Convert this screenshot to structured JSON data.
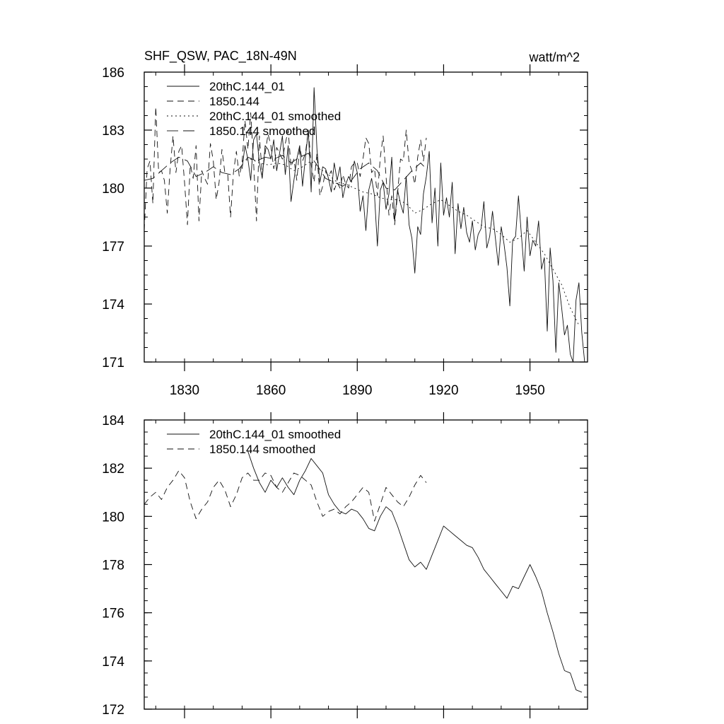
{
  "chart_data": [
    {
      "type": "line",
      "title": "SHF_QSW, PAC_18N-49N",
      "units": "watt/m^2",
      "xlabel": "",
      "ylabel": "",
      "xlim": [
        1816,
        1970
      ],
      "ylim": [
        171,
        186
      ],
      "x_ticks": [
        1830,
        1860,
        1890,
        1920,
        1950
      ],
      "y_ticks": [
        171,
        174,
        177,
        180,
        183,
        186
      ],
      "grid": false,
      "legend": "top-left",
      "series": [
        {
          "name": "20thC.144_01",
          "dash": "solid",
          "x": [
            1850,
            1851,
            1852,
            1853,
            1854,
            1855,
            1856,
            1857,
            1858,
            1859,
            1860,
            1861,
            1862,
            1863,
            1864,
            1865,
            1866,
            1867,
            1868,
            1869,
            1870,
            1871,
            1872,
            1873,
            1874,
            1875,
            1876,
            1877,
            1878,
            1879,
            1880,
            1881,
            1882,
            1883,
            1884,
            1885,
            1886,
            1887,
            1888,
            1889,
            1890,
            1891,
            1892,
            1893,
            1894,
            1895,
            1896,
            1897,
            1898,
            1899,
            1900,
            1901,
            1902,
            1903,
            1904,
            1905,
            1906,
            1907,
            1908,
            1909,
            1910,
            1911,
            1912,
            1913,
            1914,
            1915,
            1916,
            1917,
            1918,
            1919,
            1920,
            1921,
            1922,
            1923,
            1924,
            1925,
            1926,
            1927,
            1928,
            1929,
            1930,
            1931,
            1932,
            1933,
            1934,
            1935,
            1936,
            1937,
            1938,
            1939,
            1940,
            1941,
            1942,
            1943,
            1944,
            1945,
            1946,
            1947,
            1948,
            1949,
            1950,
            1951,
            1952,
            1953,
            1954,
            1955,
            1956,
            1957,
            1958,
            1959,
            1960,
            1961,
            1962,
            1963,
            1964,
            1965,
            1966,
            1967,
            1968,
            1969
          ],
          "y": [
            181.0,
            182.2,
            181.5,
            180.4,
            182.5,
            182.8,
            181.3,
            180.5,
            182.2,
            182.0,
            181.5,
            182.5,
            180.9,
            181.8,
            182.7,
            180.7,
            182.2,
            179.3,
            180.4,
            181.5,
            182.2,
            180.1,
            181.6,
            183.0,
            179.8,
            185.2,
            182.0,
            180.3,
            181.1,
            181.0,
            180.5,
            179.8,
            181.3,
            180.4,
            181.1,
            179.5,
            180.2,
            180.6,
            180.3,
            181.4,
            180.8,
            178.8,
            179.6,
            177.8,
            179.9,
            180.5,
            179.6,
            177.0,
            179.9,
            180.3,
            178.9,
            179.7,
            181.6,
            178.3,
            179.9,
            179.2,
            178.7,
            180.6,
            178.1,
            177.4,
            175.6,
            178.0,
            177.6,
            179.7,
            180.6,
            181.9,
            178.2,
            180.0,
            177.0,
            181.3,
            178.6,
            179.5,
            178.5,
            180.3,
            176.6,
            179.2,
            177.9,
            179.0,
            177.7,
            177.2,
            178.3,
            176.8,
            177.6,
            177.9,
            179.3,
            176.9,
            177.5,
            178.8,
            177.4,
            176.0,
            178.0,
            177.1,
            175.9,
            173.9,
            177.3,
            177.5,
            179.6,
            177.6,
            175.7,
            178.5,
            176.5,
            177.3,
            177.0,
            178.3,
            175.8,
            176.4,
            172.6,
            176.9,
            175.2,
            171.5,
            175.1,
            173.8,
            172.4,
            172.9,
            171.4,
            171.0,
            174.2,
            175.1,
            172.5,
            171.0
          ]
        },
        {
          "name": "1850.144",
          "dash": "dash",
          "x": [
            1816,
            1817,
            1818,
            1819,
            1820,
            1821,
            1822,
            1823,
            1824,
            1825,
            1826,
            1827,
            1828,
            1829,
            1830,
            1831,
            1832,
            1833,
            1834,
            1835,
            1836,
            1837,
            1838,
            1839,
            1840,
            1841,
            1842,
            1843,
            1844,
            1845,
            1846,
            1847,
            1848,
            1849,
            1850,
            1851,
            1852,
            1853,
            1854,
            1855,
            1856,
            1857,
            1858,
            1859,
            1860,
            1861,
            1862,
            1863,
            1864,
            1865,
            1866,
            1867,
            1868,
            1869,
            1870,
            1871,
            1872,
            1873,
            1874,
            1875,
            1876,
            1877,
            1878,
            1879,
            1880,
            1881,
            1882,
            1883,
            1884,
            1885,
            1886,
            1887,
            1888,
            1889,
            1890,
            1891,
            1892,
            1893,
            1894,
            1895,
            1896,
            1897,
            1898,
            1899,
            1900,
            1901,
            1902,
            1903,
            1904,
            1905,
            1906,
            1907,
            1908,
            1909,
            1910,
            1911,
            1912,
            1913,
            1914
          ],
          "y": [
            177.8,
            181.0,
            181.4,
            179.2,
            184.2,
            180.8,
            180.9,
            180.4,
            178.7,
            181.0,
            182.7,
            180.8,
            181.9,
            182.2,
            180.3,
            178.1,
            181.2,
            180.5,
            182.2,
            178.3,
            180.9,
            180.5,
            180.2,
            182.3,
            181.4,
            179.4,
            180.3,
            182.0,
            180.8,
            180.7,
            178.5,
            180.8,
            181.9,
            180.6,
            181.3,
            183.5,
            182.0,
            183.9,
            181.3,
            178.3,
            182.7,
            180.7,
            181.8,
            182.8,
            182.2,
            181.0,
            182.1,
            181.8,
            181.5,
            182.3,
            183.0,
            181.1,
            181.5,
            180.4,
            182.1,
            181.4,
            181.8,
            183.0,
            181.2,
            180.3,
            181.8,
            179.6,
            180.1,
            180.9,
            180.6,
            180.9,
            179.9,
            180.3,
            180.0,
            180.7,
            180.2,
            180.0,
            181.1,
            181.3,
            181.3,
            180.6,
            181.5,
            182.6,
            182.3,
            180.8,
            181.0,
            179.6,
            181.6,
            182.7,
            180.6,
            178.6,
            179.6,
            178.1,
            179.7,
            181.5,
            181.4,
            183.0,
            181.3,
            180.9,
            180.2,
            181.6,
            182.5,
            181.4,
            182.6
          ]
        },
        {
          "name": "20thC.144_01 smoothed",
          "dash": "dot",
          "x": [
            1850,
            1853,
            1856,
            1859,
            1862,
            1865,
            1868,
            1871,
            1874,
            1877,
            1880,
            1883,
            1886,
            1889,
            1892,
            1895,
            1898,
            1901,
            1904,
            1907,
            1910,
            1913,
            1916,
            1919,
            1922,
            1925,
            1928,
            1931,
            1934,
            1937,
            1940,
            1943,
            1946,
            1949,
            1952,
            1955,
            1958,
            1961,
            1964,
            1967
          ],
          "y": [
            181.4,
            181.5,
            181.3,
            181.2,
            181.3,
            181.2,
            180.9,
            181.1,
            181.4,
            181.0,
            180.7,
            180.3,
            180.2,
            180.0,
            179.8,
            179.7,
            179.5,
            179.4,
            179.4,
            179.2,
            178.7,
            178.9,
            179.2,
            179.4,
            179.1,
            178.8,
            178.6,
            178.3,
            178.0,
            177.9,
            177.6,
            177.2,
            177.4,
            177.8,
            177.2,
            176.6,
            175.8,
            175.0,
            173.8,
            172.9
          ]
        },
        {
          "name": "1850.144 smoothed",
          "dash": "longdash",
          "x": [
            1816,
            1819,
            1822,
            1825,
            1828,
            1831,
            1834,
            1837,
            1840,
            1843,
            1846,
            1849,
            1852,
            1855,
            1858,
            1861,
            1864,
            1867,
            1870,
            1873,
            1876,
            1879,
            1882,
            1885,
            1888,
            1891,
            1894,
            1897,
            1900,
            1903,
            1906,
            1909,
            1912,
            1914
          ],
          "y": [
            180.4,
            180.5,
            180.9,
            181.3,
            181.6,
            181.4,
            180.6,
            180.8,
            181.1,
            180.8,
            180.7,
            181.0,
            181.6,
            181.4,
            181.6,
            181.5,
            181.7,
            181.3,
            181.6,
            181.8,
            181.2,
            180.5,
            180.3,
            180.1,
            180.4,
            181.0,
            181.3,
            180.9,
            180.0,
            179.9,
            180.4,
            180.9,
            181.3,
            181.0
          ]
        }
      ]
    },
    {
      "type": "line",
      "title": "",
      "xlabel": "",
      "ylabel": "",
      "xlim": [
        1816,
        1970
      ],
      "ylim": [
        172,
        184
      ],
      "x_ticks": [
        1830,
        1860,
        1890,
        1920,
        1950
      ],
      "y_ticks": [
        172,
        174,
        176,
        178,
        180,
        182,
        184
      ],
      "grid": false,
      "legend": "top-left",
      "series": [
        {
          "name": "20thC.144_01 smoothed",
          "dash": "solid",
          "x": [
            1852,
            1854,
            1856,
            1858,
            1860,
            1862,
            1864,
            1866,
            1868,
            1870,
            1872,
            1874,
            1876,
            1878,
            1880,
            1882,
            1884,
            1886,
            1888,
            1890,
            1892,
            1894,
            1896,
            1898,
            1900,
            1902,
            1904,
            1906,
            1908,
            1910,
            1912,
            1914,
            1916,
            1918,
            1920,
            1922,
            1924,
            1926,
            1928,
            1930,
            1932,
            1934,
            1936,
            1938,
            1940,
            1942,
            1944,
            1946,
            1948,
            1950,
            1952,
            1954,
            1956,
            1958,
            1960,
            1962,
            1964,
            1966,
            1968
          ],
          "y": [
            182.7,
            182.0,
            181.4,
            181.0,
            181.5,
            181.2,
            181.6,
            181.2,
            180.9,
            181.5,
            181.9,
            182.4,
            182.1,
            181.8,
            180.9,
            180.5,
            180.2,
            180.1,
            180.3,
            180.2,
            179.9,
            179.5,
            179.4,
            180.0,
            180.4,
            180.2,
            179.6,
            178.9,
            178.2,
            177.9,
            178.1,
            177.8,
            178.4,
            179.0,
            179.6,
            179.4,
            179.2,
            179.0,
            178.8,
            178.7,
            178.3,
            177.8,
            177.5,
            177.2,
            176.9,
            176.6,
            177.1,
            177.0,
            177.5,
            178.0,
            177.5,
            176.9,
            176.0,
            175.2,
            174.3,
            173.6,
            173.5,
            172.8,
            172.7
          ]
        },
        {
          "name": "1850.144 smoothed",
          "dash": "dash",
          "x": [
            1816,
            1818,
            1820,
            1822,
            1824,
            1826,
            1828,
            1830,
            1832,
            1834,
            1836,
            1838,
            1840,
            1842,
            1844,
            1846,
            1848,
            1850,
            1852,
            1854,
            1856,
            1858,
            1860,
            1862,
            1864,
            1866,
            1868,
            1870,
            1872,
            1874,
            1876,
            1878,
            1880,
            1882,
            1884,
            1886,
            1888,
            1890,
            1892,
            1894,
            1896,
            1898,
            1900,
            1902,
            1904,
            1906,
            1908,
            1910,
            1912,
            1914
          ],
          "y": [
            180.5,
            180.8,
            181.0,
            180.7,
            181.2,
            181.5,
            181.9,
            181.6,
            180.6,
            179.9,
            180.3,
            180.6,
            181.2,
            181.5,
            181.1,
            180.4,
            180.9,
            181.6,
            181.8,
            181.5,
            181.5,
            181.8,
            181.7,
            181.2,
            181.0,
            181.4,
            181.8,
            181.7,
            181.5,
            181.3,
            180.6,
            180.0,
            180.2,
            180.3,
            180.1,
            180.4,
            180.6,
            180.9,
            181.2,
            181.0,
            179.8,
            180.5,
            181.2,
            180.9,
            180.6,
            180.4,
            180.8,
            181.3,
            181.7,
            181.4
          ]
        }
      ]
    }
  ]
}
